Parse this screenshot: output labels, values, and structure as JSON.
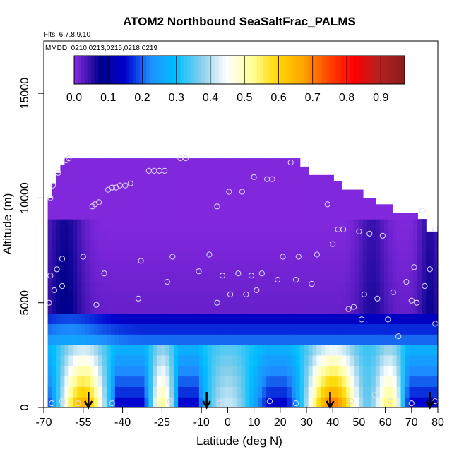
{
  "chart_data": {
    "type": "heatmap",
    "title": "ATOM2 Northbound SeaSaltFrac_PALMS",
    "flights_label": "Flts: 6,7,8,9,10",
    "dates_label": "MMDD: 0210,0213,0215,0218,0219",
    "xlabel": "Latitude (deg N)",
    "ylabel": "Altitude (m)",
    "xlim": [
      -70,
      80
    ],
    "ylim": [
      0,
      17500
    ],
    "x_ticks": [
      "-70",
      "-55",
      "-40",
      "-25",
      "-10",
      "0",
      "10",
      "20",
      "30",
      "40",
      "50",
      "60",
      "70",
      "80"
    ],
    "x_tick_values": [
      -70,
      -55,
      -40,
      -25,
      -10,
      0,
      10,
      20,
      30,
      40,
      50,
      60,
      70,
      80
    ],
    "y_ticks": [
      "0",
      "5000",
      "10000",
      "15000"
    ],
    "y_tick_values": [
      0,
      5000,
      10000,
      15000
    ],
    "colorbar": {
      "range": [
        0,
        0.97
      ],
      "ticks": [
        "0.0",
        "0.1",
        "0.2",
        "0.3",
        "0.4",
        "0.5",
        "0.6",
        "0.7",
        "0.8",
        "0.9"
      ],
      "tick_values": [
        0,
        0.1,
        0.2,
        0.3,
        0.4,
        0.5,
        0.6,
        0.7,
        0.8,
        0.9
      ],
      "colors": [
        "#8a2be2",
        "#00008b",
        "#0000cd",
        "#1e90ff",
        "#00bfff",
        "#87ceeb",
        "#ffffff",
        "#ffff99",
        "#ffd700",
        "#ffa500",
        "#ff4500",
        "#ff0000",
        "#b22222",
        "#8b1a1a"
      ]
    },
    "profile_arrows_latitude": [
      -53,
      -8,
      39,
      77
    ],
    "profile_points": [
      {
        "lat": -67.5,
        "alt": 10000
      },
      {
        "lat": -66.5,
        "alt": 10600
      },
      {
        "lat": -64.5,
        "alt": 11200
      },
      {
        "lat": -61.5,
        "alt": 11800
      },
      {
        "lat": -60.5,
        "alt": 11900
      },
      {
        "lat": -51.5,
        "alt": 9600
      },
      {
        "lat": -50.5,
        "alt": 9700
      },
      {
        "lat": -49,
        "alt": 9800
      },
      {
        "lat": -45.5,
        "alt": 10400
      },
      {
        "lat": -44,
        "alt": 10500
      },
      {
        "lat": -42.5,
        "alt": 10500
      },
      {
        "lat": -41,
        "alt": 10600
      },
      {
        "lat": -39,
        "alt": 10600
      },
      {
        "lat": -37,
        "alt": 10700
      },
      {
        "lat": -30,
        "alt": 11300
      },
      {
        "lat": -28,
        "alt": 11300
      },
      {
        "lat": -26,
        "alt": 11300
      },
      {
        "lat": -24,
        "alt": 11300
      },
      {
        "lat": -18,
        "alt": 11900
      },
      {
        "lat": -16,
        "alt": 11900
      },
      {
        "lat": -4,
        "alt": 9600
      },
      {
        "lat": 0.5,
        "alt": 10300
      },
      {
        "lat": 5.5,
        "alt": 10300
      },
      {
        "lat": 10,
        "alt": 11000
      },
      {
        "lat": 15,
        "alt": 10900
      },
      {
        "lat": 17,
        "alt": 10900
      },
      {
        "lat": 24,
        "alt": 11700
      },
      {
        "lat": 30,
        "alt": 11600
      },
      {
        "lat": 38,
        "alt": 9700
      },
      {
        "lat": 42,
        "alt": 8500
      },
      {
        "lat": 44,
        "alt": 8500
      },
      {
        "lat": 50,
        "alt": 8400
      },
      {
        "lat": 54,
        "alt": 8300
      },
      {
        "lat": 59,
        "alt": 8200
      },
      {
        "lat": 74,
        "alt": 9400
      },
      {
        "lat": 79,
        "alt": 8500
      },
      {
        "lat": -67.5,
        "alt": 6300
      },
      {
        "lat": -65,
        "alt": 6600
      },
      {
        "lat": -63,
        "alt": 7100
      },
      {
        "lat": -55,
        "alt": 7200
      },
      {
        "lat": -47,
        "alt": 6400
      },
      {
        "lat": -33,
        "alt": 7000
      },
      {
        "lat": -21,
        "alt": 7200
      },
      {
        "lat": -11,
        "alt": 6500
      },
      {
        "lat": -7,
        "alt": 7300
      },
      {
        "lat": -2,
        "alt": 6300
      },
      {
        "lat": 4,
        "alt": 6400
      },
      {
        "lat": 9,
        "alt": 6300
      },
      {
        "lat": 13,
        "alt": 6400
      },
      {
        "lat": 21,
        "alt": 7200
      },
      {
        "lat": 27,
        "alt": 7200
      },
      {
        "lat": 34,
        "alt": 7300
      },
      {
        "lat": 40,
        "alt": 7800
      },
      {
        "lat": 71,
        "alt": 6700
      },
      {
        "lat": 77,
        "alt": 6600
      },
      {
        "lat": -66,
        "alt": 5600
      },
      {
        "lat": -63,
        "alt": 5800
      },
      {
        "lat": -68,
        "alt": 5000
      },
      {
        "lat": -50,
        "alt": 4900
      },
      {
        "lat": -34,
        "alt": 5200
      },
      {
        "lat": -23,
        "alt": 6000
      },
      {
        "lat": -4,
        "alt": 5000
      },
      {
        "lat": 1,
        "alt": 5400
      },
      {
        "lat": 7,
        "alt": 5400
      },
      {
        "lat": 11,
        "alt": 5600
      },
      {
        "lat": 19,
        "alt": 6100
      },
      {
        "lat": 26,
        "alt": 6100
      },
      {
        "lat": 32,
        "alt": 5900
      },
      {
        "lat": 46,
        "alt": 4700
      },
      {
        "lat": 48,
        "alt": 4800
      },
      {
        "lat": 51,
        "alt": 4200
      },
      {
        "lat": 52,
        "alt": 5400
      },
      {
        "lat": 57,
        "alt": 5200
      },
      {
        "lat": 61,
        "alt": 4200
      },
      {
        "lat": 63,
        "alt": 5500
      },
      {
        "lat": 68,
        "alt": 6000
      },
      {
        "lat": 70,
        "alt": 5100
      },
      {
        "lat": 72,
        "alt": 5000
      },
      {
        "lat": 75,
        "alt": 5800
      },
      {
        "lat": 79,
        "alt": 4000
      },
      {
        "lat": 65,
        "alt": 3400
      },
      {
        "lat": -67,
        "alt": 200
      },
      {
        "lat": -63,
        "alt": 300
      },
      {
        "lat": -57,
        "alt": 200
      },
      {
        "lat": -44,
        "alt": 200
      },
      {
        "lat": -22,
        "alt": 300
      },
      {
        "lat": -3,
        "alt": 200
      },
      {
        "lat": 16,
        "alt": 300
      },
      {
        "lat": 26,
        "alt": 200
      },
      {
        "lat": 47,
        "alt": 300
      },
      {
        "lat": 56,
        "alt": 600
      },
      {
        "lat": 62,
        "alt": 300
      },
      {
        "lat": 70,
        "alt": 200
      },
      {
        "lat": 79,
        "alt": 300
      }
    ]
  }
}
